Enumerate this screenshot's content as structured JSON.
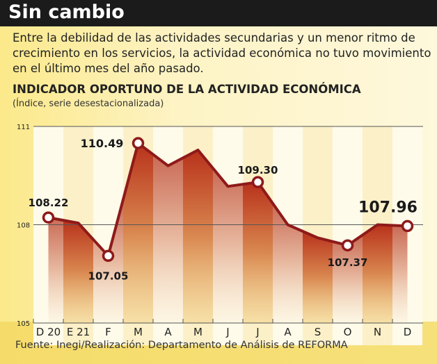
{
  "header": {
    "title": "Sin cambio"
  },
  "description": "Entre la debilidad de las actividades secundarias y un menor ritmo de crecimiento en los servicios, la actividad económica no tuvo movimiento en el último mes del año pasado.",
  "footer": {
    "source": "Fuente: Inegi/Realización: Departamento de Análisis de REFORMA"
  },
  "colors": {
    "line": "#8e1a1a",
    "fill_dark": "#c8532a",
    "fill_light": "#e7b7a0"
  },
  "chart_data": {
    "type": "line",
    "title": "INDICADOR OPORTUNO DE LA ACTIVIDAD ECONÓMICA",
    "subtitle": "(Índice, serie desestacionalizada)",
    "categories": [
      "D 20",
      "E 21",
      "F",
      "M",
      "A",
      "M",
      "J",
      "J",
      "A",
      "S",
      "O",
      "N",
      "D"
    ],
    "values": [
      108.22,
      108.05,
      107.05,
      110.49,
      109.8,
      110.28,
      109.17,
      109.3,
      108.0,
      107.6,
      107.37,
      108.0,
      107.96
    ],
    "labeled": [
      {
        "i": 0,
        "text": "108.22"
      },
      {
        "i": 2,
        "text": "107.05"
      },
      {
        "i": 3,
        "text": "110.49"
      },
      {
        "i": 7,
        "text": "109.30"
      },
      {
        "i": 10,
        "text": "107.37"
      },
      {
        "i": 12,
        "text": "107.96"
      }
    ],
    "yticks": [
      "105",
      "108",
      "111"
    ],
    "ylim": [
      105,
      111
    ],
    "grid": true
  }
}
